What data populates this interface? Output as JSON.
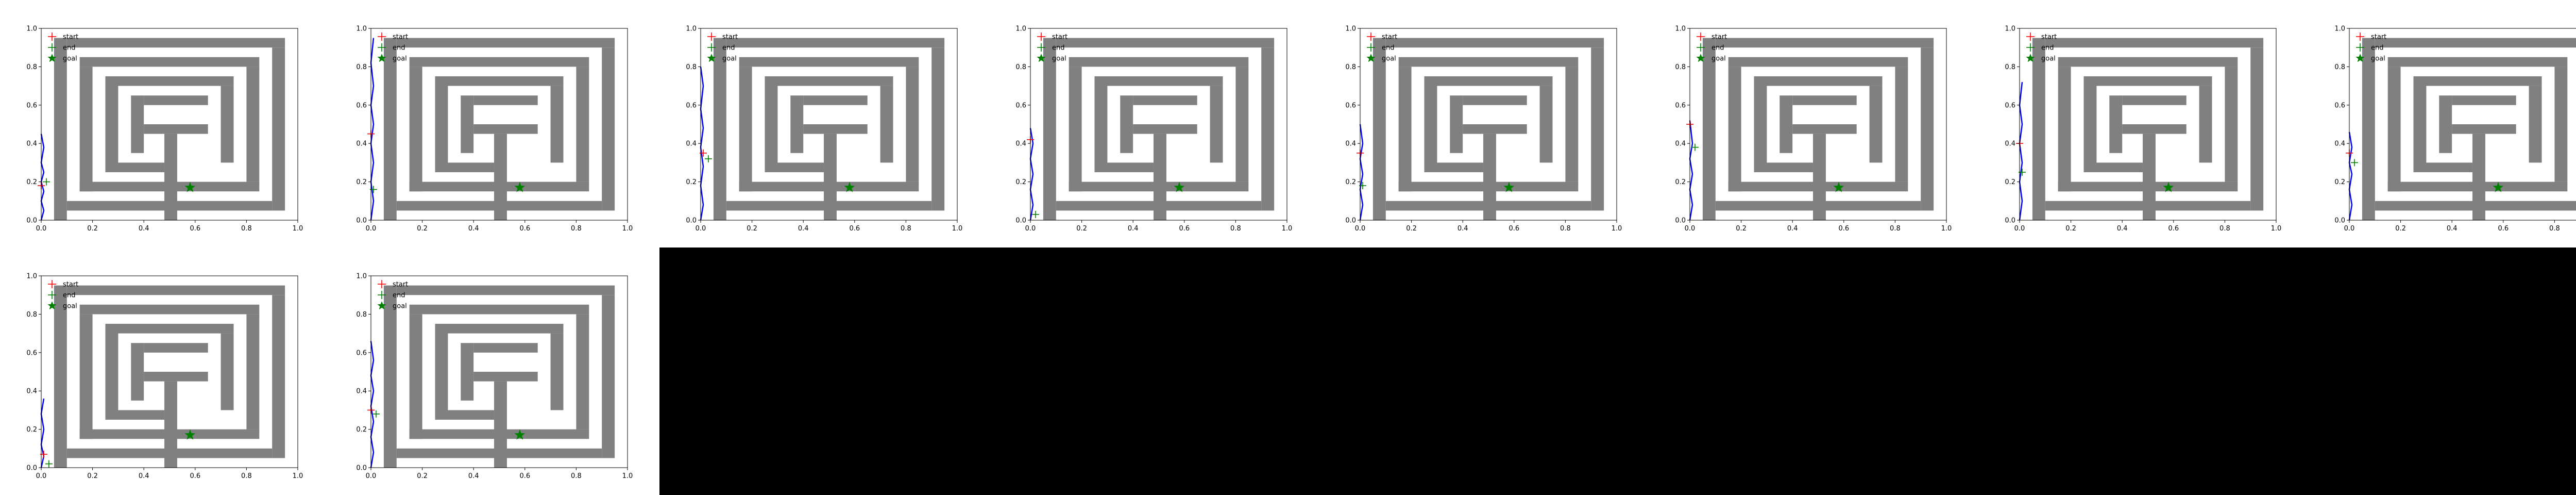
{
  "figure": {
    "background_color": "#ffffff",
    "empty_region_color": "#000000",
    "grid": {
      "rows": 2,
      "cols": 8,
      "panels_drawn": 10
    }
  },
  "chart_data": [
    {
      "type": "scatter",
      "title": "",
      "xlabel": "",
      "ylabel": "",
      "xlim": [
        0.0,
        1.0
      ],
      "ylim": [
        0.0,
        1.0
      ],
      "xticks": [
        "0.0",
        "0.2",
        "0.4",
        "0.6",
        "0.8",
        "1.0"
      ],
      "yticks": [
        "0.0",
        "0.2",
        "0.4",
        "0.6",
        "0.8",
        "1.0"
      ],
      "grid": false,
      "legend": {
        "position": "top-left",
        "entries": [
          {
            "label": "start",
            "marker": "plus",
            "color": "#ff0000"
          },
          {
            "label": "end",
            "marker": "plus",
            "color": "#008000"
          },
          {
            "label": "goal",
            "marker": "star",
            "color": "#008000"
          }
        ]
      },
      "maze": {
        "wall_color": "#808080",
        "walls": [
          {
            "x0": 0.05,
            "y0": 0.0,
            "x1": 0.1,
            "y1": 0.95
          },
          {
            "x0": 0.1,
            "y0": 0.9,
            "x1": 0.95,
            "y1": 0.95
          },
          {
            "x0": 0.9,
            "y0": 0.05,
            "x1": 0.95,
            "y1": 0.9
          },
          {
            "x0": 0.1,
            "y0": 0.05,
            "x1": 0.9,
            "y1": 0.1
          },
          {
            "x0": 0.15,
            "y0": 0.8,
            "x1": 0.85,
            "y1": 0.85
          },
          {
            "x0": 0.15,
            "y0": 0.15,
            "x1": 0.2,
            "y1": 0.8
          },
          {
            "x0": 0.8,
            "y0": 0.2,
            "x1": 0.85,
            "y1": 0.8
          },
          {
            "x0": 0.15,
            "y0": 0.15,
            "x1": 0.85,
            "y1": 0.2
          },
          {
            "x0": 0.25,
            "y0": 0.25,
            "x1": 0.3,
            "y1": 0.75
          },
          {
            "x0": 0.25,
            "y0": 0.7,
            "x1": 0.75,
            "y1": 0.75
          },
          {
            "x0": 0.7,
            "y0": 0.3,
            "x1": 0.75,
            "y1": 0.7
          },
          {
            "x0": 0.25,
            "y0": 0.25,
            "x1": 0.48,
            "y1": 0.3
          },
          {
            "x0": 0.35,
            "y0": 0.35,
            "x1": 0.4,
            "y1": 0.65
          },
          {
            "x0": 0.4,
            "y0": 0.6,
            "x1": 0.65,
            "y1": 0.65
          },
          {
            "x0": 0.4,
            "y0": 0.45,
            "x1": 0.65,
            "y1": 0.5
          },
          {
            "x0": 0.48,
            "y0": 0.0,
            "x1": 0.53,
            "y1": 0.45
          }
        ]
      },
      "goal": {
        "x": 0.58,
        "y": 0.17
      },
      "panels": [
        {
          "trajectory": [
            [
              0.0,
              0.0
            ],
            [
              0.01,
              0.05
            ],
            [
              0.0,
              0.1
            ],
            [
              0.01,
              0.15
            ],
            [
              0.0,
              0.2
            ],
            [
              0.01,
              0.25
            ],
            [
              0.0,
              0.3
            ],
            [
              0.01,
              0.38
            ],
            [
              0.0,
              0.45
            ]
          ],
          "start": [
            0.0,
            0.18
          ],
          "end": [
            0.02,
            0.2
          ]
        },
        {
          "trajectory": [
            [
              0.0,
              0.0
            ],
            [
              0.01,
              0.1
            ],
            [
              0.0,
              0.2
            ],
            [
              0.01,
              0.3
            ],
            [
              0.0,
              0.4
            ],
            [
              0.01,
              0.5
            ],
            [
              0.0,
              0.6
            ],
            [
              0.01,
              0.7
            ],
            [
              0.0,
              0.82
            ],
            [
              0.01,
              0.95
            ]
          ],
          "start": [
            0.0,
            0.45
          ],
          "end": [
            0.01,
            0.16
          ]
        },
        {
          "trajectory": [
            [
              0.0,
              0.0
            ],
            [
              0.01,
              0.08
            ],
            [
              0.0,
              0.18
            ],
            [
              0.01,
              0.28
            ],
            [
              0.0,
              0.38
            ],
            [
              0.01,
              0.48
            ],
            [
              0.0,
              0.58
            ],
            [
              0.01,
              0.7
            ],
            [
              0.0,
              0.8
            ]
          ],
          "start": [
            0.01,
            0.35
          ],
          "end": [
            0.03,
            0.32
          ]
        },
        {
          "trajectory": [
            [
              0.0,
              0.0
            ],
            [
              0.01,
              0.08
            ],
            [
              0.0,
              0.16
            ],
            [
              0.01,
              0.24
            ],
            [
              0.0,
              0.32
            ],
            [
              0.01,
              0.4
            ],
            [
              0.0,
              0.48
            ]
          ],
          "start": [
            0.0,
            0.42
          ],
          "end": [
            0.02,
            0.03
          ]
        },
        {
          "trajectory": [
            [
              0.0,
              0.0
            ],
            [
              0.01,
              0.08
            ],
            [
              0.0,
              0.16
            ],
            [
              0.01,
              0.24
            ],
            [
              0.0,
              0.32
            ],
            [
              0.01,
              0.4
            ],
            [
              0.0,
              0.5
            ]
          ],
          "start": [
            0.0,
            0.35
          ],
          "end": [
            0.01,
            0.18
          ]
        },
        {
          "trajectory": [
            [
              0.0,
              0.0
            ],
            [
              0.01,
              0.08
            ],
            [
              0.0,
              0.16
            ],
            [
              0.01,
              0.24
            ],
            [
              0.0,
              0.32
            ],
            [
              0.01,
              0.4
            ],
            [
              0.0,
              0.52
            ]
          ],
          "start": [
            0.0,
            0.5
          ],
          "end": [
            0.02,
            0.38
          ]
        },
        {
          "trajectory": [
            [
              0.0,
              0.0
            ],
            [
              0.01,
              0.1
            ],
            [
              0.0,
              0.2
            ],
            [
              0.01,
              0.3
            ],
            [
              0.0,
              0.4
            ],
            [
              0.01,
              0.5
            ],
            [
              0.0,
              0.6
            ],
            [
              0.01,
              0.72
            ]
          ],
          "start": [
            0.0,
            0.4
          ],
          "end": [
            0.01,
            0.25
          ]
        },
        {
          "trajectory": [
            [
              0.0,
              0.0
            ],
            [
              0.01,
              0.08
            ],
            [
              0.0,
              0.16
            ],
            [
              0.01,
              0.24
            ],
            [
              0.0,
              0.3
            ],
            [
              0.01,
              0.38
            ],
            [
              0.0,
              0.46
            ]
          ],
          "start": [
            0.0,
            0.35
          ],
          "end": [
            0.02,
            0.3
          ]
        },
        {
          "trajectory": [
            [
              0.0,
              0.0
            ],
            [
              0.01,
              0.06
            ],
            [
              0.0,
              0.12
            ],
            [
              0.01,
              0.2
            ],
            [
              0.0,
              0.28
            ],
            [
              0.01,
              0.36
            ]
          ],
          "start": [
            0.01,
            0.07
          ],
          "end": [
            0.03,
            0.02
          ]
        },
        {
          "trajectory": [
            [
              0.0,
              0.0
            ],
            [
              0.01,
              0.08
            ],
            [
              0.0,
              0.16
            ],
            [
              0.01,
              0.24
            ],
            [
              0.0,
              0.32
            ],
            [
              0.01,
              0.4
            ],
            [
              0.0,
              0.48
            ],
            [
              0.01,
              0.56
            ],
            [
              0.0,
              0.66
            ]
          ],
          "start": [
            0.0,
            0.3
          ],
          "end": [
            0.02,
            0.28
          ]
        }
      ],
      "trajectory_color": "#0000ff"
    }
  ]
}
